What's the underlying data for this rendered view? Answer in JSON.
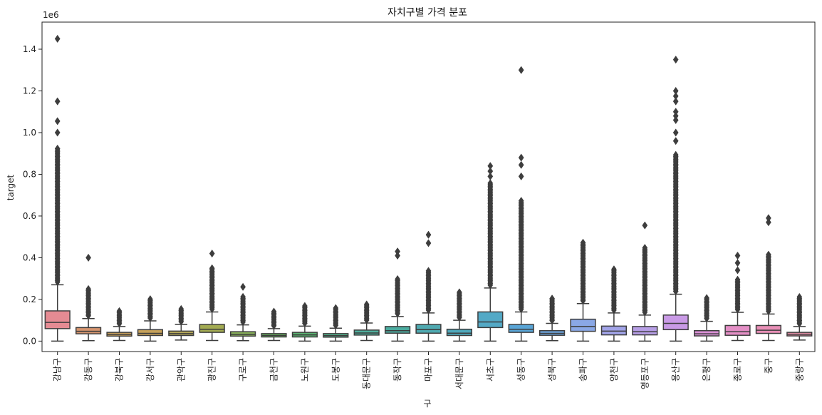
{
  "chart_data": {
    "type": "box",
    "title": "자치구별 가격 분포",
    "xlabel": "구",
    "ylabel": "target",
    "y_offset_label": "1e6",
    "y_scale": 1000000,
    "ylim": [
      -50000,
      1530000
    ],
    "yticks": [
      0,
      200000,
      400000,
      600000,
      800000,
      1000000,
      1200000,
      1400000
    ],
    "ytick_labels": [
      "0.0",
      "0.2",
      "0.4",
      "0.6",
      "0.8",
      "1.0",
      "1.2",
      "1.4"
    ],
    "grid": false,
    "categories": [
      {
        "name": "강남구",
        "color": "#e58b93",
        "whislo": 0,
        "q1": 60000,
        "med": 90000,
        "q3": 145000,
        "whishi": 270000,
        "outlier_dense_to": 930000,
        "outliers": [
          1000000,
          1055000,
          1150000,
          1450000
        ]
      },
      {
        "name": "강동구",
        "color": "#d6956e",
        "whislo": 2000,
        "q1": 35000,
        "med": 47000,
        "q3": 65000,
        "whishi": 108000,
        "outlier_dense_to": 250000,
        "outliers": [
          400000
        ]
      },
      {
        "name": "강북구",
        "color": "#c99f5a",
        "whislo": 3000,
        "q1": 24000,
        "med": 32000,
        "q3": 42000,
        "whishi": 70000,
        "outlier_dense_to": 145000,
        "outliers": []
      },
      {
        "name": "강서구",
        "color": "#c6a15a",
        "whislo": 0,
        "q1": 27000,
        "med": 37000,
        "q3": 55000,
        "whishi": 97000,
        "outlier_dense_to": 205000,
        "outliers": []
      },
      {
        "name": "관악구",
        "color": "#b5a85a",
        "whislo": 5000,
        "q1": 27000,
        "med": 36000,
        "q3": 48000,
        "whishi": 80000,
        "outlier_dense_to": 160000,
        "outliers": []
      },
      {
        "name": "광진구",
        "color": "#a3ab52",
        "whislo": 3000,
        "q1": 42000,
        "med": 57000,
        "q3": 80000,
        "whishi": 140000,
        "outlier_dense_to": 350000,
        "outliers": [
          420000
        ]
      },
      {
        "name": "구로구",
        "color": "#89b15b",
        "whislo": 2000,
        "q1": 24000,
        "med": 32000,
        "q3": 45000,
        "whishi": 78000,
        "outlier_dense_to": 215000,
        "outliers": [
          260000
        ]
      },
      {
        "name": "금천구",
        "color": "#6ab460",
        "whislo": 3000,
        "q1": 20000,
        "med": 27000,
        "q3": 36000,
        "whishi": 60000,
        "outlier_dense_to": 145000,
        "outliers": []
      },
      {
        "name": "노원구",
        "color": "#5ab170",
        "whislo": 0,
        "q1": 20000,
        "med": 30000,
        "q3": 42000,
        "whishi": 72000,
        "outlier_dense_to": 175000,
        "outliers": []
      },
      {
        "name": "도봉구",
        "color": "#53b08a",
        "whislo": 0,
        "q1": 19000,
        "med": 26000,
        "q3": 36000,
        "whishi": 62000,
        "outlier_dense_to": 160000,
        "outliers": []
      },
      {
        "name": "동대문구",
        "color": "#4fae9c",
        "whislo": 3000,
        "q1": 29000,
        "med": 39000,
        "q3": 53000,
        "whishi": 87000,
        "outlier_dense_to": 180000,
        "outliers": []
      },
      {
        "name": "동작구",
        "color": "#4bab9f",
        "whislo": 0,
        "q1": 38000,
        "med": 50000,
        "q3": 70000,
        "whishi": 118000,
        "outlier_dense_to": 300000,
        "outliers": [
          410000,
          430000
        ]
      },
      {
        "name": "마포구",
        "color": "#4fa9b0",
        "whislo": 0,
        "q1": 38000,
        "med": 55000,
        "q3": 80000,
        "whishi": 135000,
        "outlier_dense_to": 340000,
        "outliers": [
          470000,
          510000
        ]
      },
      {
        "name": "서대문구",
        "color": "#4fa8bb",
        "whislo": 0,
        "q1": 27000,
        "med": 38000,
        "q3": 57000,
        "whishi": 100000,
        "outlier_dense_to": 240000,
        "outliers": []
      },
      {
        "name": "서초구",
        "color": "#53a9c6",
        "whislo": 0,
        "q1": 65000,
        "med": 92000,
        "q3": 140000,
        "whishi": 255000,
        "outlier_dense_to": 760000,
        "outliers": [
          790000,
          815000,
          840000
        ]
      },
      {
        "name": "성동구",
        "color": "#59a5d6",
        "whislo": 0,
        "q1": 42000,
        "med": 57000,
        "q3": 80000,
        "whishi": 140000,
        "outlier_dense_to": 680000,
        "outliers": [
          790000,
          845000,
          880000,
          1300000
        ]
      },
      {
        "name": "성북구",
        "color": "#6ea7e0",
        "whislo": 2000,
        "q1": 28000,
        "med": 37000,
        "q3": 50000,
        "whishi": 85000,
        "outlier_dense_to": 210000,
        "outliers": []
      },
      {
        "name": "송파구",
        "color": "#8aa8e6",
        "whislo": 0,
        "q1": 47000,
        "med": 70000,
        "q3": 105000,
        "whishi": 180000,
        "outlier_dense_to": 475000,
        "outliers": []
      },
      {
        "name": "양천구",
        "color": "#a2a4e8",
        "whislo": 0,
        "q1": 30000,
        "med": 48000,
        "q3": 72000,
        "whishi": 135000,
        "outlier_dense_to": 345000,
        "outliers": []
      },
      {
        "name": "영등포구",
        "color": "#b79fe6",
        "whislo": 0,
        "q1": 30000,
        "med": 45000,
        "q3": 70000,
        "whishi": 125000,
        "outlier_dense_to": 450000,
        "outliers": [
          555000
        ]
      },
      {
        "name": "용산구",
        "color": "#c99ae6",
        "whislo": 0,
        "q1": 55000,
        "med": 85000,
        "q3": 125000,
        "whishi": 225000,
        "outlier_dense_to": 900000,
        "outliers": [
          960000,
          1000000,
          1060000,
          1080000,
          1100000,
          1150000,
          1175000,
          1200000,
          1350000
        ]
      },
      {
        "name": "은평구",
        "color": "#dc91d8",
        "whislo": 0,
        "q1": 25000,
        "med": 35000,
        "q3": 50000,
        "whishi": 95000,
        "outlier_dense_to": 210000,
        "outliers": []
      },
      {
        "name": "종로구",
        "color": "#e48fc6",
        "whislo": 3000,
        "q1": 28000,
        "med": 45000,
        "q3": 75000,
        "whishi": 138000,
        "outlier_dense_to": 300000,
        "outliers": [
          340000,
          375000,
          410000
        ]
      },
      {
        "name": "중구",
        "color": "#e88fb7",
        "whislo": 3000,
        "q1": 37000,
        "med": 52000,
        "q3": 75000,
        "whishi": 130000,
        "outlier_dense_to": 420000,
        "outliers": [
          570000,
          590000
        ]
      },
      {
        "name": "중랑구",
        "color": "#e78ea6",
        "whislo": 5000,
        "q1": 25000,
        "med": 33000,
        "q3": 42000,
        "whishi": 70000,
        "outlier_dense_to": 215000,
        "outliers": []
      }
    ]
  }
}
